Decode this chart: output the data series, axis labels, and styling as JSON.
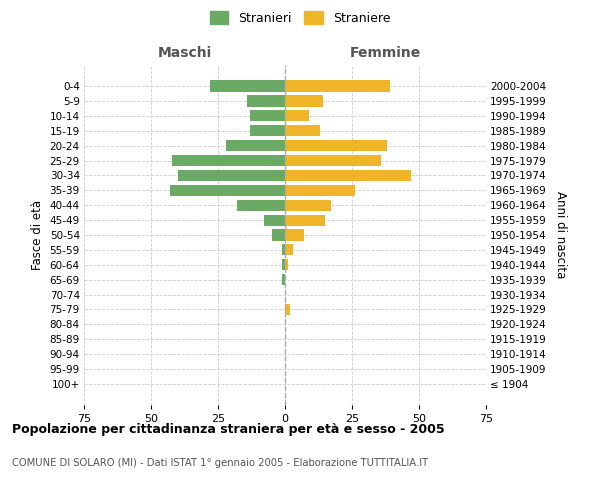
{
  "age_groups": [
    "100+",
    "95-99",
    "90-94",
    "85-89",
    "80-84",
    "75-79",
    "70-74",
    "65-69",
    "60-64",
    "55-59",
    "50-54",
    "45-49",
    "40-44",
    "35-39",
    "30-34",
    "25-29",
    "20-24",
    "15-19",
    "10-14",
    "5-9",
    "0-4"
  ],
  "birth_years": [
    "≤ 1904",
    "1905-1909",
    "1910-1914",
    "1915-1919",
    "1920-1924",
    "1925-1929",
    "1930-1934",
    "1935-1939",
    "1940-1944",
    "1945-1949",
    "1950-1954",
    "1955-1959",
    "1960-1964",
    "1965-1969",
    "1970-1974",
    "1975-1979",
    "1980-1984",
    "1985-1989",
    "1990-1994",
    "1995-1999",
    "2000-2004"
  ],
  "maschi": [
    0,
    0,
    0,
    0,
    0,
    0,
    0,
    1,
    1,
    1,
    5,
    8,
    18,
    43,
    40,
    42,
    22,
    13,
    13,
    14,
    28
  ],
  "femmine": [
    0,
    0,
    0,
    0,
    0,
    2,
    0,
    0,
    1,
    3,
    7,
    15,
    17,
    26,
    47,
    36,
    38,
    13,
    9,
    14,
    39
  ],
  "color_maschi": "#6aaa64",
  "color_femmine": "#f0b429",
  "xlim": 75,
  "title": "Popolazione per cittadinanza straniera per età e sesso - 2005",
  "subtitle": "COMUNE DI SOLARO (MI) - Dati ISTAT 1° gennaio 2005 - Elaborazione TUTTITALIA.IT",
  "ylabel_left": "Fasce di età",
  "ylabel_right": "Anni di nascita",
  "legend_maschi": "Stranieri",
  "legend_femmine": "Straniere",
  "maschi_label": "Maschi",
  "femmine_label": "Femmine",
  "background_color": "#ffffff",
  "grid_color": "#cccccc"
}
